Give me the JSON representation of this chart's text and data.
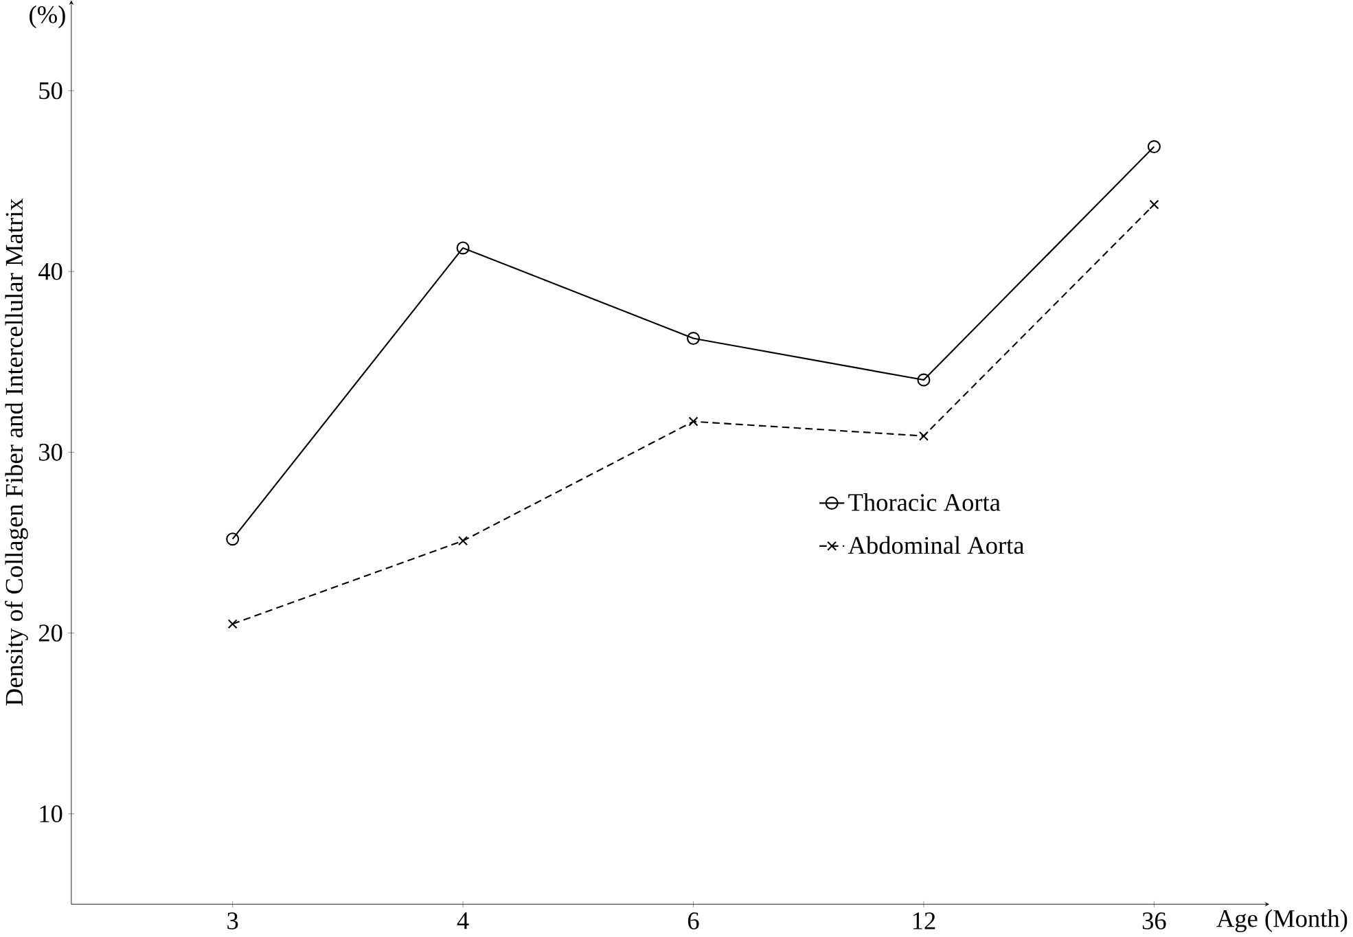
{
  "chart_data": {
    "type": "line",
    "xlabel": "Age (Month)",
    "ylabel": "Density of  Collagen  Fiber  and  Intercellular  Matrix",
    "annotations": [
      "(%)"
    ],
    "categories": [
      "3",
      "4",
      "6",
      "12",
      "36"
    ],
    "ylim": [
      5,
      55
    ],
    "yticks": [
      10,
      20,
      30,
      40,
      50
    ],
    "grid": false,
    "legend": "right",
    "series": [
      {
        "name": "Thoracic  Aorta",
        "color": "#000000",
        "marker": "circle",
        "line_style": "solid",
        "values": [
          25.2,
          41.3,
          36.3,
          34.0,
          46.9
        ]
      },
      {
        "name": "Abdominal  Aorta",
        "color": "#000000",
        "marker": "cross",
        "line_style": "dashed",
        "values": [
          20.5,
          25.1,
          31.7,
          30.9,
          43.7
        ]
      }
    ]
  }
}
